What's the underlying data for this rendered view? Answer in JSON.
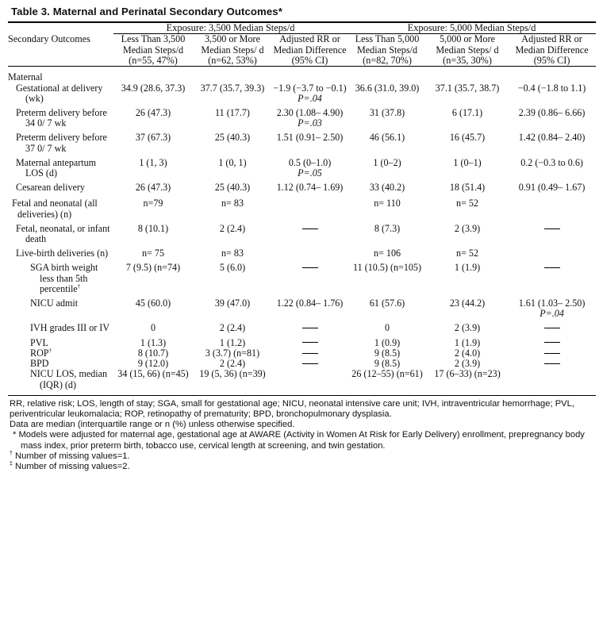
{
  "title": "Table 3.  Maternal and Perinatal Secondary Outcomes*",
  "groups": {
    "g1": "Exposure: 3,500 Median Steps/d",
    "g2": "Exposure: 5,000 Median Steps/d"
  },
  "columns": {
    "c0": "Secondary Outcomes",
    "c1": "Less Than 3,500 Median Steps/d (n=55, 47%)",
    "c2": "3,500 or More Median Steps/ d (n=62, 53%)",
    "c3": "Adjusted RR or Median Difference (95% CI)",
    "c4": "Less Than 5,000 Median Steps/d (n=82, 70%)",
    "c5": "5,000 or More Median Steps/ d (n=35, 30%)",
    "c6": "Adjusted RR or Median Difference (95% CI)"
  },
  "rows": {
    "maternal": "Maternal",
    "ga": {
      "label": "Gestational at delivery (wk)",
      "c1": "34.9 (28.6, 37.3)",
      "c2": "37.7 (35.7, 39.3)",
      "c3": "−1.9 (−3.7 to −0.1)",
      "c3p": "P=.04",
      "c4": "36.6 (31.0, 39.0)",
      "c5": "37.1 (35.7, 38.7)",
      "c6": "−0.4 (−1.8 to 1.1)"
    },
    "pt34": {
      "label": "Preterm delivery before 34 0/ 7 wk",
      "c1": "26 (47.3)",
      "c2": "11 (17.7)",
      "c3": "2.30 (1.08– 4.90)",
      "c3p": "P=.03",
      "c4": "31 (37.8)",
      "c5": "6 (17.1)",
      "c6": "2.39 (0.86– 6.66)"
    },
    "pt37": {
      "label": "Preterm delivery before 37 0/ 7 wk",
      "c1": "37 (67.3)",
      "c2": "25 (40.3)",
      "c3": "1.51 (0.91– 2.50)",
      "c4": "46 (56.1)",
      "c5": "16 (45.7)",
      "c6": "1.42 (0.84– 2.40)"
    },
    "alos": {
      "label": "Maternal antepartum LOS (d)",
      "c1": "1 (1, 3)",
      "c2": "1 (0, 1)",
      "c3": "0.5 (0–1.0)",
      "c3p": "P=.05",
      "c4": "1 (0–2)",
      "c5": "1 (0–1)",
      "c6": "0.2 (−0.3 to 0.6)"
    },
    "ces": {
      "label": "Cesarean delivery",
      "c1": "26 (47.3)",
      "c2": "25 (40.3)",
      "c3": "1.12 (0.74– 1.69)",
      "c4": "33 (40.2)",
      "c5": "18 (51.4)",
      "c6": "0.91 (0.49– 1.67)"
    },
    "fetal": {
      "label": "Fetal and neonatal (all deliveries) (n)",
      "c1": "n=79",
      "c2": "n= 83",
      "c4": "n= 110",
      "c5": "n= 52"
    },
    "death": {
      "label": "Fetal, neonatal, or infant death",
      "c1": "8 (10.1)",
      "c2": "2 (2.4)",
      "c4": "8 (7.3)",
      "c5": "2 (3.9)"
    },
    "live": {
      "label": "Live-birth deliveries (n)",
      "c1": "n= 75",
      "c2": "n= 83",
      "c4": "n= 106",
      "c5": "n= 52"
    },
    "sga": {
      "label": "SGA birth weight less than 5th percentile",
      "sup": "†",
      "c1": "7 (9.5) (n=74)",
      "c2": "5 (6.0)",
      "c4": "11 (10.5) (n=105)",
      "c5": "1 (1.9)"
    },
    "nicu": {
      "label": "NICU admit",
      "c1": "45 (60.0)",
      "c2": "39 (47.0)",
      "c3": "1.22 (0.84– 1.76)",
      "c4": "61 (57.6)",
      "c5": "23 (44.2)",
      "c6": "1.61 (1.03– 2.50)",
      "c6p": "P=.04"
    },
    "ivh": {
      "label": "IVH grades III or IV",
      "c1": "0",
      "c2": "2 (2.4)",
      "c4": "0",
      "c5": "2 (3.9)"
    },
    "pvl": {
      "label": "PVL",
      "c1": "1 (1.3)",
      "c2": "1 (1.2)",
      "c4": "1 (0.9)",
      "c5": "1 (1.9)"
    },
    "rop": {
      "label": "ROP",
      "sup": "†",
      "c1": "8 (10.7)",
      "c2": "3 (3.7) (n=81)",
      "c4": "9 (8.5)",
      "c5": "2 (4.0)"
    },
    "bpd": {
      "label": "BPD",
      "c1": "9 (12.0)",
      "c2": "2 (2.4)",
      "c4": "9 (8.5)",
      "c5": "2 (3.9)"
    },
    "nlos": {
      "label": "NICU LOS, median (IQR) (d)",
      "c1": "34 (15, 66) (n=45)",
      "c2": "19 (5, 36) (n=39)",
      "c4": "26 (12–55) (n=61)",
      "c5": "17 (6–33) (n=23)"
    }
  },
  "notes": {
    "abbr": "RR, relative risk; LOS, length of stay; SGA, small for gestational age; NICU, neonatal intensive care unit; IVH, intraventricular hemorrhage; PVL, periventricular leukomalacia; ROP, retinopathy of prematurity; BPD, bronchopulmonary dysplasia.",
    "data": "Data are median (interquartile range or n (%) unless otherwise specified.",
    "star_mark": "*",
    "star": "Models were adjusted for maternal age, gestational age at AWARE (Activity in Women At Risk for Early Delivery) enrollment, prepregnancy body mass index, prior preterm birth, tobacco use, cervical length at screening, and twin gestation.",
    "dagger_mark": "†",
    "dagger": "Number of missing values=1.",
    "ddagger_mark": "‡",
    "ddagger": "Number of missing values=2."
  }
}
